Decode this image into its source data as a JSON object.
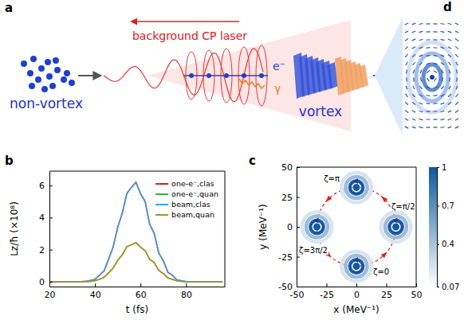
{
  "panel_labels": [
    "a",
    "b",
    "c",
    "d"
  ],
  "diagram": {
    "laser_label": "background CP laser",
    "input_label": "non-vortex",
    "output_label": "vortex",
    "electron_label": "e⁻",
    "photon_label": "γ"
  },
  "chart_data": [
    {
      "type": "line",
      "x_label": "t (fs)",
      "y_label": "Lz/ħ (×10⁸)",
      "x": [
        20,
        22,
        24,
        26,
        28,
        30,
        32,
        34,
        36,
        38,
        40,
        42,
        44,
        46,
        48,
        50,
        52,
        54,
        56,
        58,
        60,
        62,
        64,
        66,
        68,
        70,
        72,
        74,
        76,
        78,
        80,
        82,
        84,
        86,
        88,
        90,
        92,
        94,
        96
      ],
      "xlim": [
        20,
        97
      ],
      "xticks": [
        20,
        40,
        60,
        80
      ],
      "ylim": [
        -0.3,
        6.9
      ],
      "yticks": [
        0,
        2,
        4,
        6
      ],
      "legend": "upper right",
      "series": [
        {
          "name": "one-e⁻,clas",
          "color": "#d62020",
          "values": [
            0,
            0,
            0,
            0,
            0,
            0,
            0,
            0.01,
            0.03,
            0.08,
            0.15,
            0.42,
            0.68,
            1.42,
            2.18,
            3.42,
            4.28,
            5.52,
            5.88,
            6.22,
            5.48,
            5.02,
            3.58,
            3.02,
            1.78,
            1.32,
            0.58,
            0.41,
            0.11,
            0.06,
            0.01,
            0,
            0,
            0,
            0,
            0,
            0,
            0,
            0
          ]
        },
        {
          "name": "one-e⁻,quan",
          "color": "#3cb043",
          "values": [
            0,
            0,
            0,
            0,
            0,
            0,
            0,
            0,
            0.01,
            0.03,
            0.07,
            0.15,
            0.29,
            0.55,
            0.87,
            1.34,
            1.69,
            2.19,
            2.31,
            2.44,
            2.16,
            1.94,
            1.41,
            1.19,
            0.71,
            0.51,
            0.24,
            0.15,
            0.05,
            0.02,
            0,
            0,
            0,
            0,
            0,
            0,
            0,
            0,
            0
          ]
        },
        {
          "name": "beam,clas",
          "color": "#3aa0e0",
          "values": [
            0,
            0,
            0,
            0,
            0,
            0,
            0,
            0.01,
            0.03,
            0.07,
            0.16,
            0.4,
            0.7,
            1.4,
            2.2,
            3.4,
            4.3,
            5.5,
            5.9,
            6.2,
            5.5,
            5.0,
            3.6,
            3.0,
            1.8,
            1.3,
            0.6,
            0.4,
            0.12,
            0.06,
            0.01,
            0,
            0,
            0,
            0,
            0,
            0,
            0,
            0
          ]
        },
        {
          "name": "beam,quan",
          "color": "#b09020",
          "values": [
            0,
            0,
            0,
            0,
            0,
            0,
            0,
            0,
            0.01,
            0.03,
            0.06,
            0.16,
            0.28,
            0.56,
            0.86,
            1.35,
            1.68,
            2.2,
            2.3,
            2.45,
            2.15,
            1.95,
            1.4,
            1.2,
            0.7,
            0.52,
            0.23,
            0.16,
            0.05,
            0.02,
            0,
            0,
            0,
            0,
            0,
            0,
            0,
            0,
            0
          ]
        }
      ]
    },
    {
      "type": "density",
      "x_label": "x (MeV⁻¹)",
      "y_label": "y (MeV⁻¹)",
      "xlim": [
        -50,
        50
      ],
      "xticks": [
        -50,
        -25,
        0,
        25,
        50
      ],
      "ylim": [
        -50,
        50
      ],
      "yticks": [
        -50,
        -25,
        0,
        25,
        50
      ],
      "orbit_radius": 33,
      "vortices": [
        {
          "label": "ζ=0",
          "x": 0,
          "y": -33
        },
        {
          "label": "ζ=π/2",
          "x": 33,
          "y": 0
        },
        {
          "label": "ζ=π",
          "x": 0,
          "y": 33
        },
        {
          "label": "ζ=3π/2",
          "x": -33,
          "y": 0
        }
      ],
      "ring_radii": [
        1.5,
        5.5,
        9,
        12.5
      ],
      "ring_values": [
        1,
        0.9,
        0.45,
        0.22
      ],
      "colorbar": {
        "range": [
          0.07,
          1
        ],
        "ticks": [
          0.07,
          0.4,
          0.7,
          1
        ]
      }
    }
  ]
}
